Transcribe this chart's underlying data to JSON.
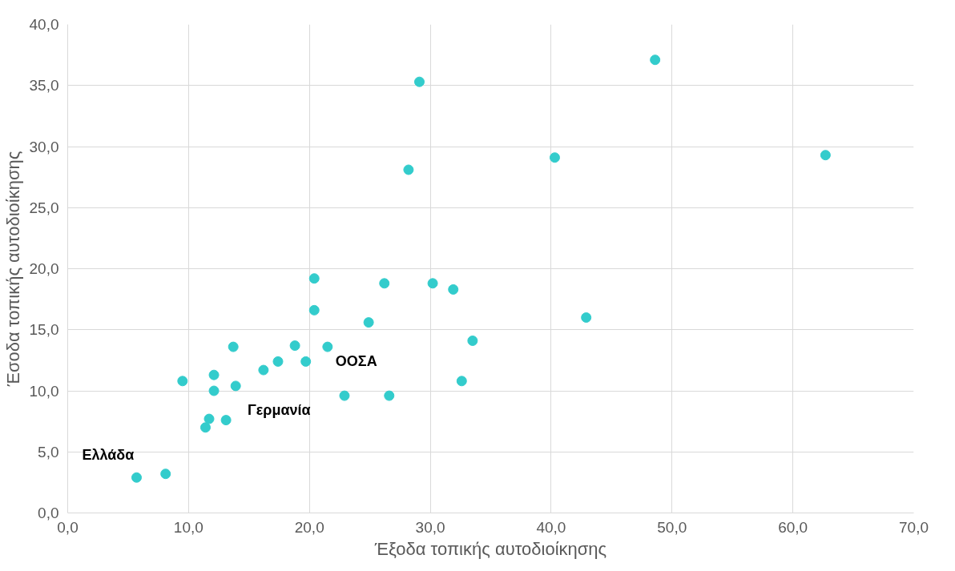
{
  "chart_data": {
    "type": "scatter",
    "xlabel": "Έξοδα τοπικής αυτοδιοίκησης",
    "ylabel": "Έσοδα τοπικής αυτοδιοίκησης",
    "x": [
      5.7,
      8.1,
      9.5,
      11.4,
      11.7,
      12.1,
      12.1,
      13.1,
      13.7,
      13.9,
      16.2,
      17.4,
      18.8,
      19.7,
      20.4,
      20.4,
      21.5,
      22.9,
      24.9,
      26.2,
      26.6,
      28.2,
      29.1,
      30.2,
      31.9,
      32.6,
      33.5,
      40.3,
      42.9,
      48.6,
      62.7
    ],
    "values": [
      2.9,
      3.2,
      10.8,
      7.0,
      7.7,
      11.3,
      10.0,
      7.6,
      13.6,
      10.4,
      11.7,
      12.4,
      13.7,
      12.4,
      19.2,
      16.6,
      13.6,
      9.6,
      15.6,
      18.8,
      9.6,
      28.1,
      35.3,
      18.8,
      18.3,
      10.8,
      14.1,
      29.1,
      16.0,
      37.1,
      29.3
    ],
    "color": "#33cccc",
    "marker": "circle",
    "grid": true,
    "xlim": [
      0,
      70
    ],
    "ylim": [
      0,
      40
    ],
    "xticks": [
      {
        "value": 0,
        "label": "0,0"
      },
      {
        "value": 10,
        "label": "10,0"
      },
      {
        "value": 20,
        "label": "20,0"
      },
      {
        "value": 30,
        "label": "30,0"
      },
      {
        "value": 40,
        "label": "40,0"
      },
      {
        "value": 50,
        "label": "50,0"
      },
      {
        "value": 60,
        "label": "60,0"
      },
      {
        "value": 70,
        "label": "70,0"
      }
    ],
    "yticks": [
      {
        "value": 0,
        "label": "0,0"
      },
      {
        "value": 5,
        "label": "5,0"
      },
      {
        "value": 10,
        "label": "10,0"
      },
      {
        "value": 15,
        "label": "15,0"
      },
      {
        "value": 20,
        "label": "20,0"
      },
      {
        "value": 25,
        "label": "25,0"
      },
      {
        "value": 30,
        "label": "30,0"
      },
      {
        "value": 35,
        "label": "35,0"
      },
      {
        "value": 40,
        "label": "40,0"
      }
    ],
    "annotations": [
      {
        "text": "Ελλάδα",
        "x": 5.7,
        "y": 2.9
      },
      {
        "text": "Γερμανία",
        "x": 16.2,
        "y": 11.7
      },
      {
        "text": "ΟΟΣΑ",
        "x": 21.5,
        "y": 13.6
      }
    ]
  }
}
